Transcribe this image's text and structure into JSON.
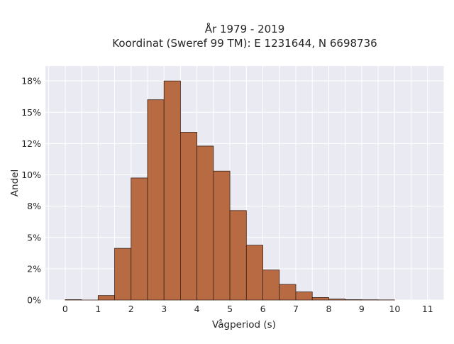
{
  "chart_data": {
    "type": "bar",
    "title_lines": [
      "År 1979 - 2019",
      "Koordinat (Sweref 99 TM): E 1231644, N 6698736"
    ],
    "xlabel": "Vågperiod (s)",
    "ylabel": "Andel",
    "bin_width": 0.5,
    "bins": [
      {
        "x": 0.0,
        "value": 0.0003
      },
      {
        "x": 0.5,
        "value": 0.0
      },
      {
        "x": 1.0,
        "value": 0.0036
      },
      {
        "x": 1.5,
        "value": 0.0413
      },
      {
        "x": 2.0,
        "value": 0.0975
      },
      {
        "x": 2.5,
        "value": 0.16
      },
      {
        "x": 3.0,
        "value": 0.175
      },
      {
        "x": 3.5,
        "value": 0.134
      },
      {
        "x": 4.0,
        "value": 0.123
      },
      {
        "x": 4.5,
        "value": 0.103
      },
      {
        "x": 5.0,
        "value": 0.0715
      },
      {
        "x": 5.5,
        "value": 0.0438
      },
      {
        "x": 6.0,
        "value": 0.024
      },
      {
        "x": 6.5,
        "value": 0.0125
      },
      {
        "x": 7.0,
        "value": 0.0065
      },
      {
        "x": 7.5,
        "value": 0.002
      },
      {
        "x": 8.0,
        "value": 0.0008
      },
      {
        "x": 8.5,
        "value": 0.0003
      },
      {
        "x": 9.0,
        "value": 0.0002
      },
      {
        "x": 9.5,
        "value": 0.0001
      }
    ],
    "xlim": [
      -0.6,
      11.5
    ],
    "ylim": [
      0,
      0.187
    ],
    "x_ticks": [
      0,
      1,
      2,
      3,
      4,
      5,
      6,
      7,
      8,
      9,
      10,
      11
    ],
    "x_tick_labels": [
      "0",
      "1",
      "2",
      "3",
      "4",
      "5",
      "6",
      "7",
      "8",
      "9",
      "10",
      "11"
    ],
    "y_ticks": [
      0,
      0.025,
      0.05,
      0.075,
      0.1,
      0.125,
      0.15,
      0.175
    ],
    "y_tick_labels": [
      "0%",
      "2%",
      "5%",
      "8%",
      "10%",
      "12%",
      "15%",
      "18%"
    ],
    "grid": true,
    "bar_color": "#b86a43",
    "bar_edge_color": "#3a2318",
    "plot_background": "#eaeaf2"
  }
}
